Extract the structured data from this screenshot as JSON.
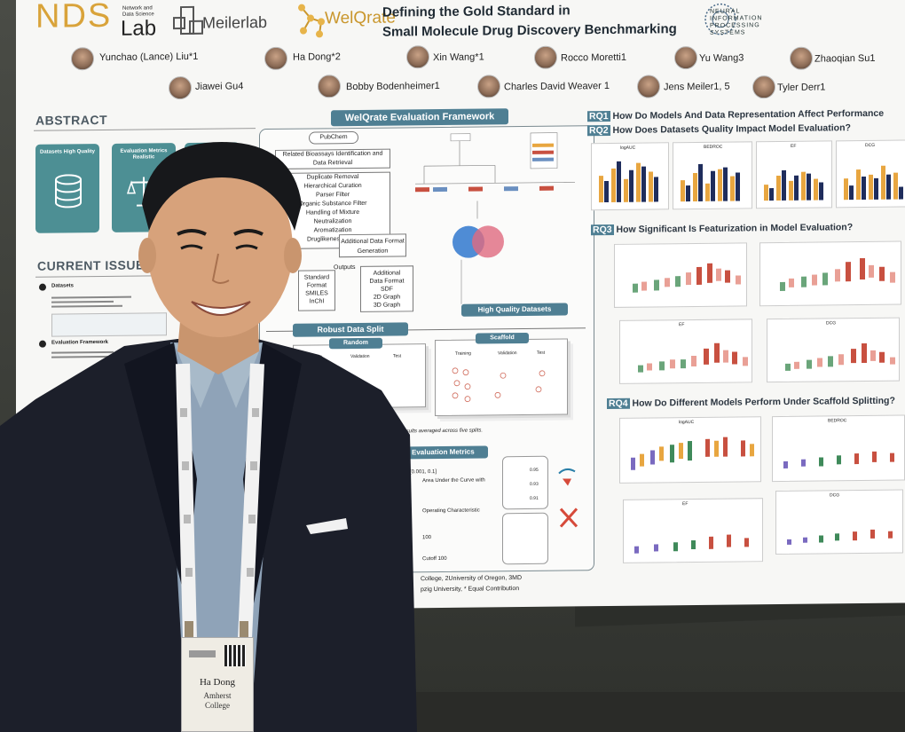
{
  "poster": {
    "lab_logo": {
      "main": "NDS",
      "sub": "Lab",
      "tagline": "Network and Data Science"
    },
    "meilerlab_logo": "Meilerlab",
    "welqrate_logo": "WelQrate",
    "title_line1": "Defining the Gold Standard in",
    "title_line2": "Small Molecule Drug Discovery Benchmarking",
    "neurips_logo": "NEURAL INFORMATION PROCESSING SYSTEMS",
    "authors_row1": [
      "Yunchao (Lance) Liu*1",
      "Ha Dong*2",
      "Xin Wang*1",
      "Rocco Moretti1",
      "Yu Wang3",
      "Zhaoqian Su1"
    ],
    "authors_row2": [
      "Jiawei Gu4",
      "Bobby Bodenheimer1",
      "Charles David Weaver 1",
      "Jens Meiler1, 5",
      "Tyler Derr1"
    ],
    "abstract_heading": "ABSTRACT",
    "abstract_cards": [
      "Datasets High Quality",
      "Evaluation Metrics Realistic"
    ],
    "current_issue_heading": "CURRENT ISSUE",
    "current_issue_items": [
      "Datasets",
      "Evaluation Framework"
    ],
    "framework_banner": "WelQrate Evaluation Framework",
    "pipeline_steps": [
      "PubChem",
      "Related Bioassays Identification and Data Retrieval",
      "Duplicate Removal",
      "Hierarchical Curation",
      "Parser Filter",
      "Organic Substance Filter",
      "Handling of Mixture",
      "Neutralization",
      "Aromatization",
      "Druglikeness Filter",
      "Additional Data Format Generation"
    ],
    "outputs_label": "Outputs",
    "outputs_std": [
      "Standard",
      "Format",
      "SMILES",
      "InChI"
    ],
    "outputs_add": [
      "Additional",
      "Data Format",
      "SDF",
      "2D Graph",
      "3D Graph"
    ],
    "hq_banner": "High Quality Datasets",
    "split_banner": "Robust Data Split",
    "split_random": "Random",
    "split_scaffold": "Scaffold",
    "split_cols": [
      "Training",
      "Validation",
      "Test"
    ],
    "split_note": "Results averaged across five splits.",
    "metrics_banner": "Evaluation Metrics",
    "metrics_text": [
      "Area Under the Curve with",
      "[0.001, 0.1]",
      "Operating Characteristic",
      "100",
      "Cutoff 100"
    ],
    "metric_values": [
      "0.95",
      "0.93",
      "0.91"
    ],
    "affiliations": [
      "College, 2University of Oregon, 3MD",
      "pzig University, * Equal Contribution"
    ],
    "rq1": {
      "tag": "RQ1",
      "text": "How Do Models And Data Representation Affect Performance"
    },
    "rq2": {
      "tag": "RQ2",
      "text": "How Does Datasets Quality Impact Model Evaluation?"
    },
    "rq3": {
      "tag": "RQ3",
      "text": "How Significant Is Featurization in Model Evaluation?"
    },
    "rq4": {
      "tag": "RQ4",
      "text": "How Do Different Models Perform Under Scaffold Splitting?"
    },
    "chart_titles": [
      "logAUC",
      "BEDROC",
      "EF",
      "DCG"
    ]
  },
  "badge": {
    "name": "Ha Dong",
    "affiliation": "Amherst College"
  },
  "colors": {
    "poster_bg": "#f7f7f5",
    "accent_gold": "#d9a33a",
    "accent_teal": "#4f7f93",
    "bar_orange": "#e8a640",
    "bar_navy": "#1f2d5c",
    "box_red": "#c85040",
    "box_green": "#3f8a5a",
    "venn_blue": "#3c7fd0",
    "venn_pink": "#e06a80",
    "jacket": "#1c1f2a",
    "shirt": "#8fa3b8",
    "lanyard": "#f2f2f2"
  }
}
